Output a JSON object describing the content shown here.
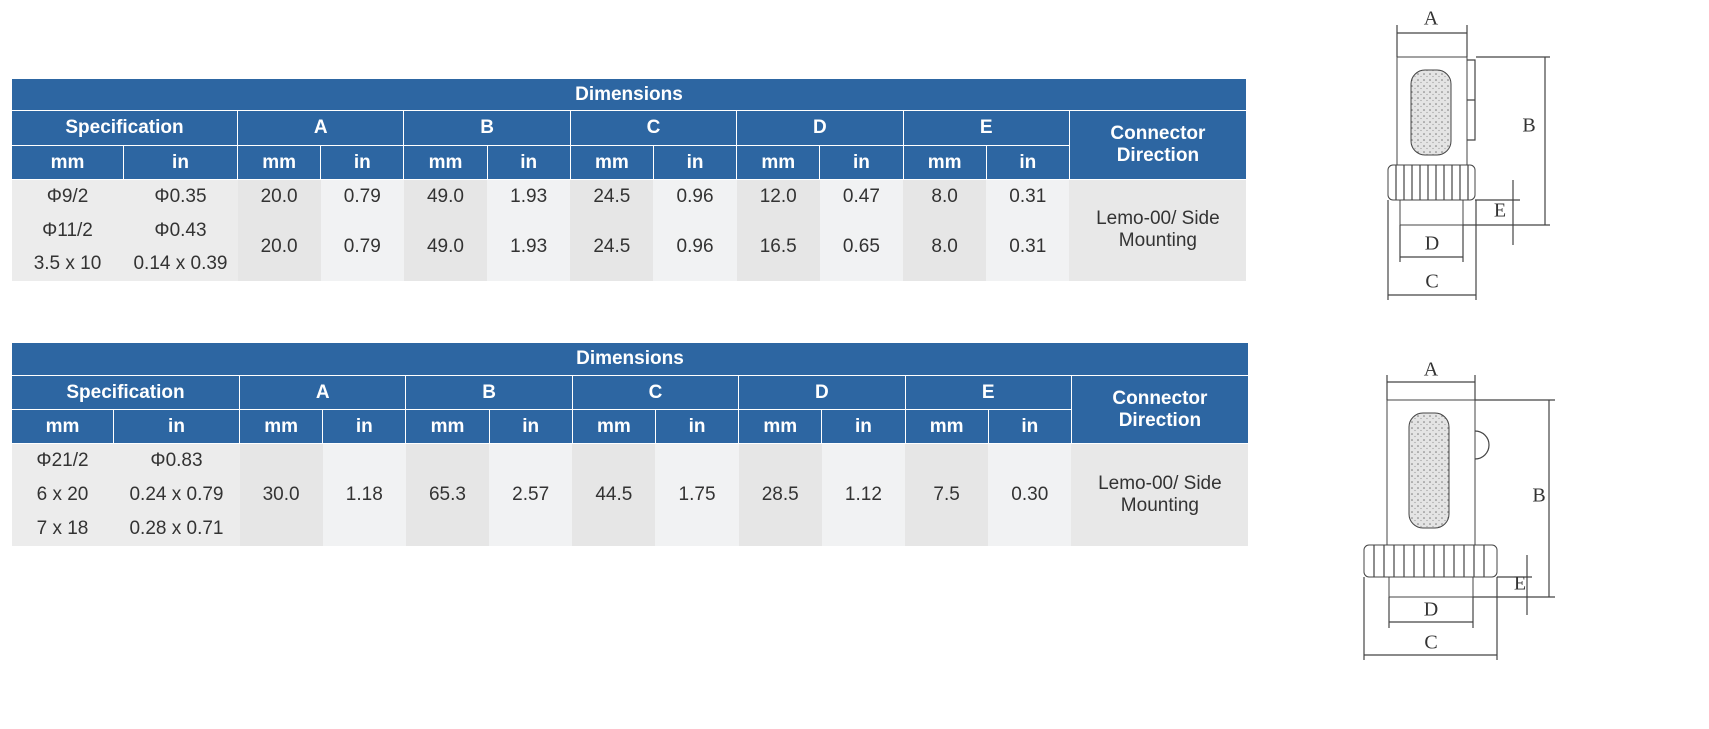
{
  "tables": [
    {
      "title": "Dimensions",
      "spec_header": "Specification",
      "dim_headers": [
        "A",
        "B",
        "C",
        "D",
        "E"
      ],
      "units": [
        "mm",
        "in"
      ],
      "connector_header": "Connector Direction",
      "spec_rows": [
        [
          "Φ9/2",
          "Φ0.35"
        ],
        [
          "Φ11/2",
          "Φ0.43"
        ],
        [
          "3.5 x 10",
          "0.14 x 0.39"
        ]
      ],
      "value_groups": [
        [
          "20.0",
          "0.79",
          "49.0",
          "1.93",
          "24.5",
          "0.96",
          "12.0",
          "0.47",
          "8.0",
          "0.31"
        ],
        [
          "20.0",
          "0.79",
          "49.0",
          "1.93",
          "24.5",
          "0.96",
          "16.5",
          "0.65",
          "8.0",
          "0.31"
        ]
      ],
      "connector": "Lemo-00/ Side Mounting"
    },
    {
      "title": "Dimensions",
      "spec_header": "Specification",
      "dim_headers": [
        "A",
        "B",
        "C",
        "D",
        "E"
      ],
      "units": [
        "mm",
        "in"
      ],
      "connector_header": "Connector Direction",
      "spec_rows": [
        [
          "Φ21/2",
          "Φ0.83"
        ],
        [
          "6 x 20",
          "0.24 x 0.79"
        ],
        [
          "7 x 18",
          "0.28 x 0.71"
        ]
      ],
      "value_groups": [
        [
          "30.0",
          "1.18",
          "65.3",
          "2.57",
          "44.5",
          "1.75",
          "28.5",
          "1.12",
          "7.5",
          "0.30"
        ]
      ],
      "connector": "Lemo-00/ Side Mounting"
    }
  ],
  "diagrams": [
    {
      "labels": [
        "A",
        "B",
        "C",
        "D",
        "E"
      ]
    },
    {
      "labels": [
        "A",
        "B",
        "C",
        "D",
        "E"
      ]
    }
  ]
}
